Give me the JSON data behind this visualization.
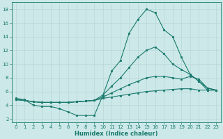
{
  "xlabel": "Humidex (Indice chaleur)",
  "bg_color": "#cce8e8",
  "grid_color": "#aacccc",
  "line_color": "#1a7a6e",
  "xlim": [
    -0.5,
    23.5
  ],
  "ylim": [
    1.5,
    19.0
  ],
  "xticks": [
    0,
    1,
    2,
    3,
    4,
    5,
    6,
    7,
    8,
    9,
    10,
    11,
    12,
    13,
    14,
    15,
    16,
    17,
    18,
    19,
    20,
    21,
    22,
    23
  ],
  "yticks": [
    2,
    4,
    6,
    8,
    10,
    12,
    14,
    16,
    18
  ],
  "series": [
    {
      "x": [
        0,
        1,
        2,
        3,
        4,
        5,
        6,
        7,
        8,
        9,
        10,
        11,
        12,
        13,
        14,
        15,
        16,
        17,
        18,
        19,
        20,
        21,
        22,
        23
      ],
      "y": [
        5.0,
        4.8,
        4.0,
        3.8,
        3.8,
        3.5,
        3.0,
        2.5,
        2.5,
        2.5,
        5.5,
        9.0,
        10.5,
        14.5,
        16.5,
        18.0,
        17.5,
        15.0,
        14.0,
        11.0,
        8.5,
        7.5,
        6.2,
        6.2
      ]
    },
    {
      "x": [
        0,
        1,
        2,
        3,
        4,
        5,
        6,
        7,
        8,
        9,
        10,
        11,
        12,
        13,
        14,
        15,
        16,
        17,
        18,
        19,
        20,
        21,
        22,
        23
      ],
      "y": [
        4.8,
        4.7,
        4.5,
        4.4,
        4.4,
        4.4,
        4.4,
        4.5,
        4.6,
        4.7,
        5.0,
        5.2,
        5.4,
        5.6,
        5.8,
        6.0,
        6.1,
        6.2,
        6.3,
        6.4,
        6.4,
        6.2,
        6.2,
        6.2
      ]
    },
    {
      "x": [
        0,
        1,
        2,
        3,
        4,
        5,
        6,
        7,
        8,
        9,
        10,
        11,
        12,
        13,
        14,
        15,
        16,
        17,
        18,
        19,
        20,
        21,
        22,
        23
      ],
      "y": [
        4.8,
        4.7,
        4.5,
        4.4,
        4.4,
        4.4,
        4.4,
        4.5,
        4.6,
        4.7,
        5.2,
        5.8,
        6.4,
        7.0,
        7.5,
        8.0,
        8.2,
        8.2,
        8.0,
        7.8,
        8.2,
        7.8,
        6.5,
        6.2
      ]
    },
    {
      "x": [
        0,
        1,
        2,
        3,
        4,
        5,
        6,
        7,
        8,
        9,
        10,
        11,
        12,
        13,
        14,
        15,
        16,
        17,
        18,
        19,
        20,
        21,
        22,
        23
      ],
      "y": [
        4.8,
        4.7,
        4.5,
        4.4,
        4.4,
        4.4,
        4.4,
        4.5,
        4.6,
        4.7,
        5.5,
        6.8,
        8.0,
        9.5,
        11.0,
        12.0,
        12.5,
        11.5,
        10.0,
        9.2,
        8.5,
        7.5,
        6.5,
        6.2
      ]
    }
  ]
}
